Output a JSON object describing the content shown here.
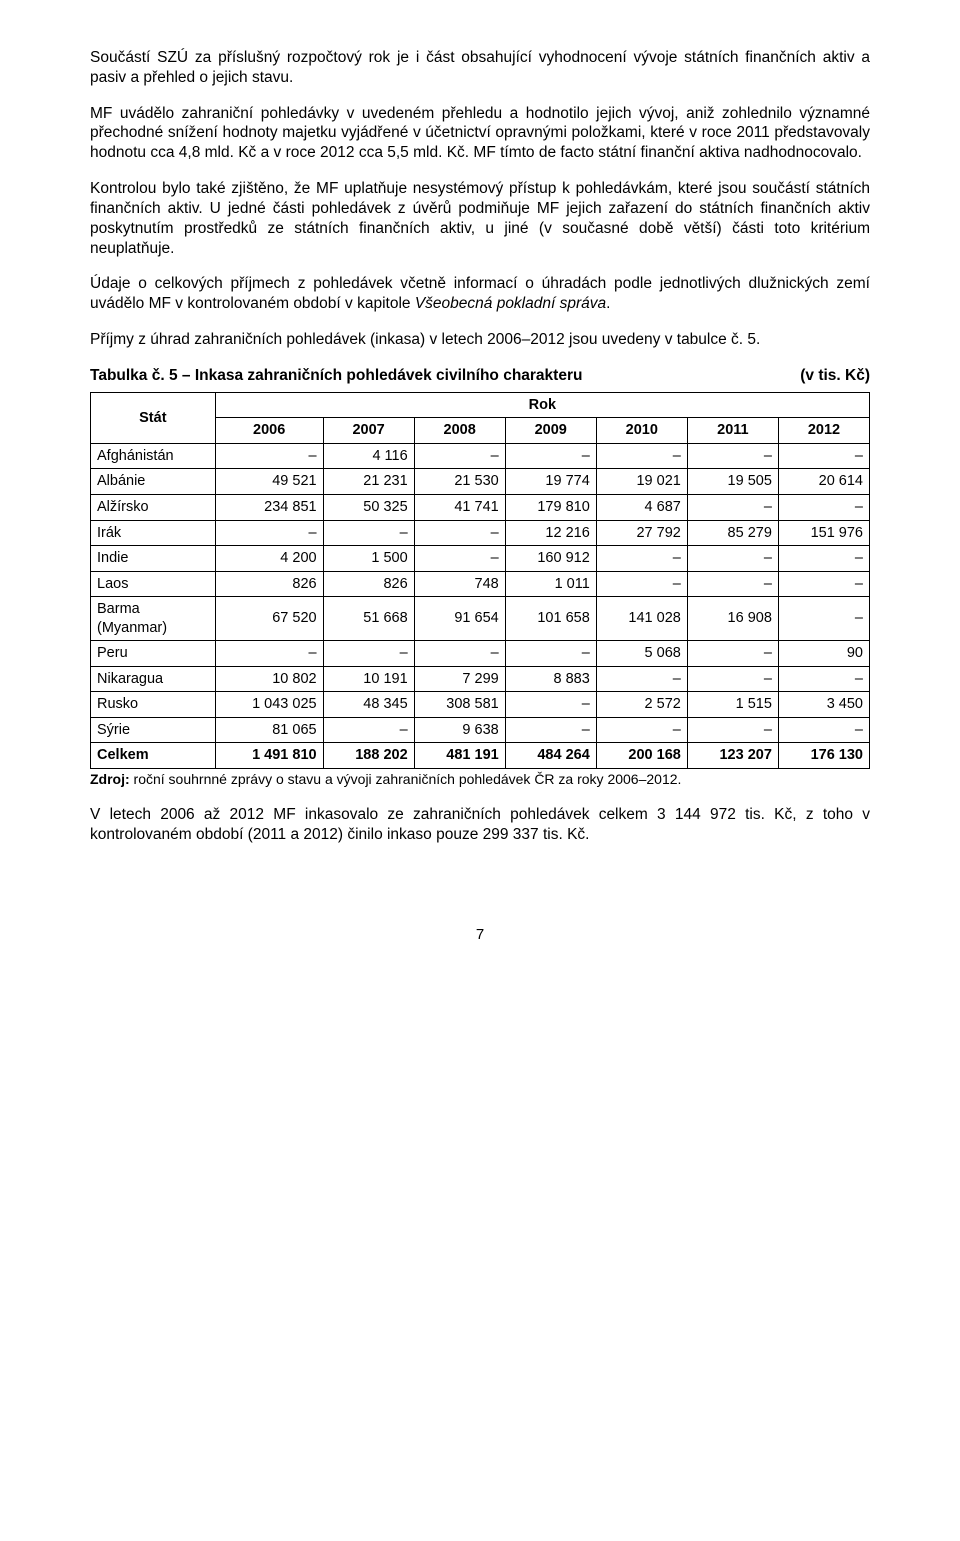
{
  "paragraphs": {
    "p1": "Součástí SZÚ za příslušný rozpočtový rok je i část obsahující vyhodnocení vývoje státních finančních aktiv a pasiv a přehled o jejich stavu.",
    "p2_a": "MF uvádělo zahraniční pohledávky v uvedeném přehledu a hodnotilo jejich vývoj, aniž zohlednilo významné přechodné snížení hodnoty majetku vyjádřené v účetnictví opravnými položkami, které v roce 2011 představovaly hodnotu cca 4,8 mld. Kč a v roce 2012 cca 5,5 mld. Kč. ",
    "p2_b": "MF tímto de facto státní finanční aktiva nadhodnocovalo.",
    "p3": "Kontrolou bylo také zjištěno, že MF uplatňuje nesystémový přístup k pohledávkám, které jsou součástí státních finančních aktiv. U jedné části pohledávek z úvěrů podmiňuje MF jejich zařazení do státních finančních aktiv poskytnutím prostředků ze státních finančních aktiv, u jiné (v současné době větší) části toto kritérium neuplatňuje.",
    "p4_a": "Údaje o celkových příjmech z pohledávek včetně informací o úhradách podle jednotlivých dlužnických zemí uvádělo MF v kontrolovaném období v kapitole ",
    "p4_b": "Všeobecná pokladní správa",
    "p4_c": ".",
    "p5": "Příjmy z úhrad zahraničních pohledávek (inkasa) v letech 2006–2012 jsou uvedeny v tabulce č. 5.",
    "p6": "V letech 2006 až 2012 MF inkasovalo ze zahraničních pohledávek celkem 3 144 972 tis. Kč, z toho v kontrolovaném období (2011 a 2012) činilo inkaso pouze 299 337 tis. Kč."
  },
  "table": {
    "title_left": "Tabulka č. 5 – Inkasa zahraničních pohledávek civilního charakteru",
    "title_right": "(v tis. Kč)",
    "header_state": "Stát",
    "header_year": "Rok",
    "years": [
      "2006",
      "2007",
      "2008",
      "2009",
      "2010",
      "2011",
      "2012"
    ],
    "rows": [
      {
        "label": "Afghánistán",
        "cells": [
          "–",
          "4 116",
          "–",
          "–",
          "–",
          "–",
          "–"
        ]
      },
      {
        "label": "Albánie",
        "cells": [
          "49 521",
          "21 231",
          "21 530",
          "19 774",
          "19 021",
          "19 505",
          "20 614"
        ]
      },
      {
        "label": "Alžírsko",
        "cells": [
          "234 851",
          "50 325",
          "41 741",
          "179 810",
          "4 687",
          "–",
          "–"
        ]
      },
      {
        "label": "Irák",
        "cells": [
          "–",
          "–",
          "–",
          "12 216",
          "27 792",
          "85 279",
          "151 976"
        ]
      },
      {
        "label": "Indie",
        "cells": [
          "4 200",
          "1 500",
          "–",
          "160 912",
          "–",
          "–",
          "–"
        ]
      },
      {
        "label": "Laos",
        "cells": [
          "826",
          "826",
          "748",
          "1 011",
          "–",
          "–",
          "–"
        ]
      },
      {
        "label": "Barma\n(Myanmar)",
        "cells": [
          "67 520",
          "51 668",
          "91 654",
          "101 658",
          "141 028",
          "16 908",
          "–"
        ]
      },
      {
        "label": "Peru",
        "cells": [
          "–",
          "–",
          "–",
          "–",
          "5 068",
          "–",
          "90"
        ]
      },
      {
        "label": "Nikaragua",
        "cells": [
          "10 802",
          "10 191",
          "7 299",
          "8 883",
          "–",
          "–",
          "–"
        ]
      },
      {
        "label": "Rusko",
        "cells": [
          "1 043 025",
          "48 345",
          "308 581",
          "–",
          "2 572",
          "1 515",
          "3 450"
        ]
      },
      {
        "label": "Sýrie",
        "cells": [
          "81 065",
          "–",
          "9 638",
          "–",
          "–",
          "–",
          "–"
        ]
      }
    ],
    "totals": {
      "label": "Celkem",
      "cells": [
        "1 491 810",
        "188 202",
        "481 191",
        "484 264",
        "200 168",
        "123 207",
        "176 130"
      ]
    },
    "source_prefix": "Zdroj: ",
    "source_text": "roční souhrnné zprávy o stavu a vývoji zahraničních pohledávek ČR za roky 2006–2012."
  },
  "page_number": "7",
  "colors": {
    "text": "#000000",
    "background": "#ffffff",
    "border": "#000000"
  }
}
